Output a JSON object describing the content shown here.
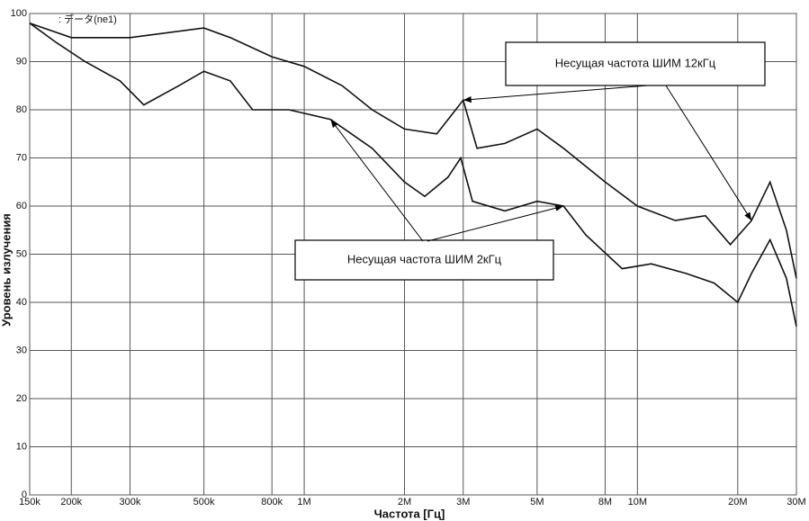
{
  "chart_data": {
    "type": "line",
    "note": ": データ(ne1)",
    "x_label": "Частота [Гц]",
    "y_label": "Уровень излучения",
    "xscale": "log",
    "grid": true,
    "xlim": [
      150000,
      30000000
    ],
    "ylim": [
      0,
      100
    ],
    "yticks": [
      0,
      10,
      20,
      30,
      40,
      50,
      60,
      70,
      80,
      90,
      100
    ],
    "xticks": [
      {
        "value": 150000,
        "label": "150k"
      },
      {
        "value": 200000,
        "label": "200k"
      },
      {
        "value": 300000,
        "label": "300k"
      },
      {
        "value": 500000,
        "label": "500k"
      },
      {
        "value": 800000,
        "label": "800k"
      },
      {
        "value": 1000000,
        "label": "1M"
      },
      {
        "value": 2000000,
        "label": "2M"
      },
      {
        "value": 3000000,
        "label": "3M"
      },
      {
        "value": 5000000,
        "label": "5M"
      },
      {
        "value": 8000000,
        "label": "8M"
      },
      {
        "value": 10000000,
        "label": "10M"
      },
      {
        "value": 20000000,
        "label": "20M"
      },
      {
        "value": 30000000,
        "label": "30M"
      }
    ],
    "series": [
      {
        "name": "Несущая частота ШИМ 12кГц",
        "color": "#111111",
        "x": [
          150000,
          200000,
          300000,
          500000,
          600000,
          800000,
          1000000,
          1300000,
          1600000,
          2000000,
          2500000,
          3000000,
          3300000,
          4000000,
          5000000,
          6000000,
          8000000,
          10000000,
          13000000,
          16000000,
          19000000,
          22000000,
          25000000,
          28000000,
          30000000
        ],
        "values": [
          98,
          95,
          95,
          97,
          95,
          91,
          89,
          85,
          80,
          76,
          75,
          82,
          72,
          73,
          76,
          72,
          65,
          60,
          57,
          58,
          52,
          57,
          65,
          55,
          45
        ]
      },
      {
        "name": "Несущая частота ШИМ 2кГц",
        "color": "#111111",
        "x": [
          150000,
          180000,
          220000,
          280000,
          330000,
          420000,
          500000,
          600000,
          700000,
          900000,
          1200000,
          1600000,
          2000000,
          2300000,
          2700000,
          2950000,
          3200000,
          4000000,
          5000000,
          6000000,
          7000000,
          9000000,
          11000000,
          14000000,
          17000000,
          20000000,
          22000000,
          25000000,
          28000000,
          30000000
        ],
        "values": [
          98,
          94,
          90,
          86,
          81,
          85,
          88,
          86,
          80,
          80,
          78,
          72,
          65,
          62,
          66,
          70,
          61,
          59,
          61,
          60,
          54,
          47,
          48,
          46,
          44,
          40,
          46,
          53,
          45,
          35
        ]
      }
    ]
  }
}
